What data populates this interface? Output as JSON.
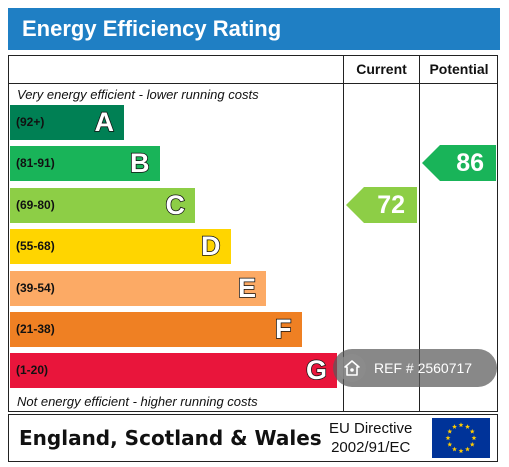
{
  "chart_data": {
    "type": "bar",
    "title": "Energy Efficiency Rating",
    "columns": [
      "Current",
      "Potential"
    ],
    "top_caption": "Very energy efficient - lower running costs",
    "bottom_caption": "Not energy efficient - higher running costs",
    "bands": [
      {
        "letter": "A",
        "range": "(92+)",
        "color": "#008054"
      },
      {
        "letter": "B",
        "range": "(81-91)",
        "color": "#19b459"
      },
      {
        "letter": "C",
        "range": "(69-80)",
        "color": "#8dce46"
      },
      {
        "letter": "D",
        "range": "(55-68)",
        "color": "#ffd500"
      },
      {
        "letter": "E",
        "range": "(39-54)",
        "color": "#fcaa65"
      },
      {
        "letter": "F",
        "range": "(21-38)",
        "color": "#ef8023"
      },
      {
        "letter": "G",
        "range": "(1-20)",
        "color": "#e9153b"
      }
    ],
    "current": {
      "value": 72,
      "band": "C",
      "color": "#8dce46"
    },
    "potential": {
      "value": 86,
      "band": "B",
      "color": "#19b459"
    }
  },
  "footer": {
    "region": "England, Scotland & Wales",
    "directive_line1": "EU Directive",
    "directive_line2": "2002/91/EC",
    "flag_icon": "eu-flag-icon"
  },
  "watermark": {
    "ref_text": "REF # 2560717",
    "icon": "home-icon"
  }
}
